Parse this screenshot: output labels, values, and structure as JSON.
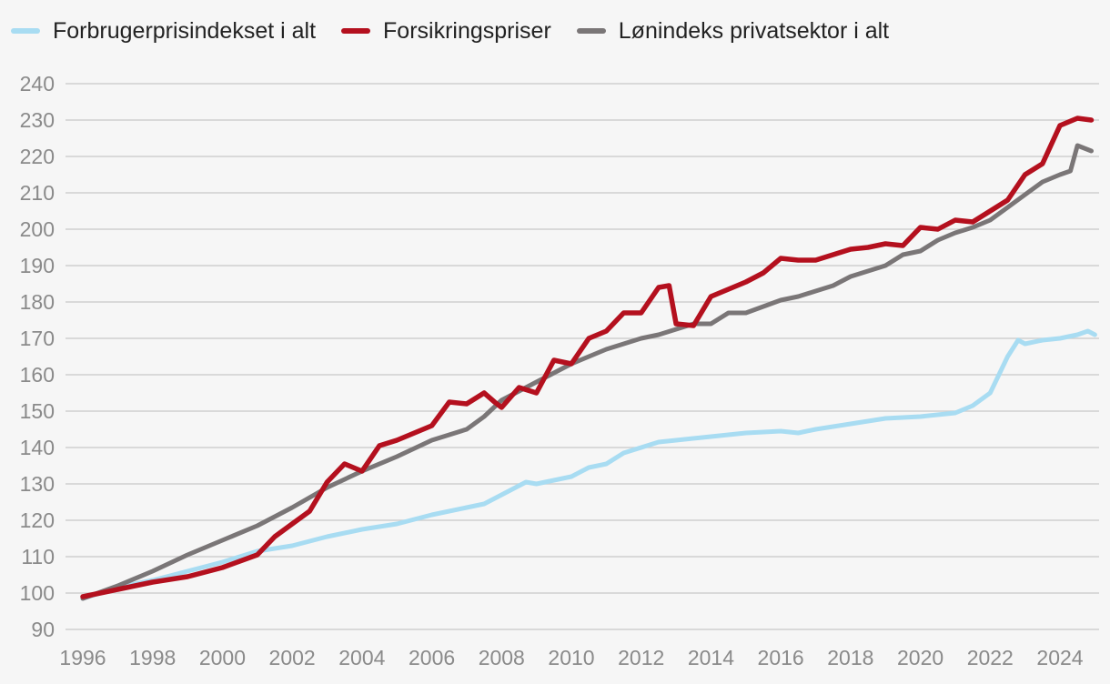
{
  "chart_data": {
    "type": "line",
    "title": "",
    "xlabel": "",
    "ylabel": "",
    "xlim": [
      1996,
      2025
    ],
    "ylim": [
      90,
      240
    ],
    "y_ticks": [
      90,
      100,
      110,
      120,
      130,
      140,
      150,
      160,
      170,
      180,
      190,
      200,
      210,
      220,
      230,
      240
    ],
    "x_ticks": [
      1996,
      1998,
      2000,
      2002,
      2004,
      2006,
      2008,
      2010,
      2012,
      2014,
      2016,
      2018,
      2020,
      2022,
      2024
    ],
    "grid": "horizontal",
    "legend_position": "top-left",
    "series": [
      {
        "name": "Forbrugerprisindekset i alt",
        "color": "#a8dcf2",
        "x": [
          1996.0,
          1997.0,
          1998.0,
          1999.0,
          2000.0,
          2001.0,
          2002.0,
          2003.0,
          2004.0,
          2005.0,
          2006.0,
          2007.0,
          2007.5,
          2008.0,
          2008.7,
          2009.0,
          2010.0,
          2010.5,
          2011.0,
          2011.5,
          2012.0,
          2012.5,
          2013.0,
          2014.0,
          2015.0,
          2016.0,
          2016.5,
          2017.0,
          2018.0,
          2019.0,
          2020.0,
          2021.0,
          2021.5,
          2022.0,
          2022.5,
          2022.8,
          2023.0,
          2023.5,
          2024.0,
          2024.5,
          2024.8,
          2025.0
        ],
        "values": [
          98.5,
          101.5,
          103.5,
          106.0,
          108.5,
          111.5,
          113.0,
          115.5,
          117.5,
          119.0,
          121.5,
          123.5,
          124.5,
          127.0,
          130.5,
          130.0,
          132.0,
          134.5,
          135.5,
          138.5,
          140.0,
          141.5,
          142.0,
          143.0,
          144.0,
          144.5,
          144.0,
          145.0,
          146.5,
          148.0,
          148.5,
          149.5,
          151.5,
          155.0,
          165.0,
          169.5,
          168.5,
          169.5,
          170.0,
          171.0,
          172.0,
          171.0
        ]
      },
      {
        "name": "Forsikringspriser",
        "color": "#b4101e",
        "x": [
          1996.0,
          1997.0,
          1998.0,
          1999.0,
          2000.0,
          2001.0,
          2001.5,
          2002.0,
          2002.5,
          2003.0,
          2003.5,
          2004.0,
          2004.5,
          2005.0,
          2006.0,
          2006.5,
          2007.0,
          2007.5,
          2007.8,
          2008.0,
          2008.5,
          2009.0,
          2009.5,
          2010.0,
          2010.5,
          2011.0,
          2011.5,
          2012.0,
          2012.5,
          2012.8,
          2013.0,
          2013.5,
          2014.0,
          2014.5,
          2015.0,
          2015.5,
          2016.0,
          2016.5,
          2017.0,
          2018.0,
          2018.5,
          2019.0,
          2019.5,
          2020.0,
          2020.5,
          2021.0,
          2021.5,
          2022.0,
          2022.5,
          2023.0,
          2023.5,
          2024.0,
          2024.5,
          2024.9
        ],
        "values": [
          99.0,
          101.0,
          103.0,
          104.5,
          107.0,
          110.5,
          115.5,
          119.0,
          122.5,
          130.5,
          135.5,
          133.5,
          140.5,
          142.0,
          146.0,
          152.5,
          152.0,
          155.0,
          152.5,
          151.0,
          156.5,
          155.0,
          164.0,
          163.0,
          170.0,
          172.0,
          177.0,
          177.0,
          184.0,
          184.5,
          174.0,
          173.5,
          181.5,
          183.5,
          185.5,
          188.0,
          192.0,
          191.5,
          191.5,
          194.5,
          195.0,
          196.0,
          195.5,
          200.5,
          200.0,
          202.5,
          202.0,
          205.0,
          208.0,
          215.0,
          218.0,
          228.5,
          230.5,
          230.0
        ]
      },
      {
        "name": "Lønindeks privatsektor i alt",
        "color": "#7a7677",
        "x": [
          1996.0,
          1997.0,
          1998.0,
          1999.0,
          2000.0,
          2001.0,
          2002.0,
          2003.0,
          2004.0,
          2005.0,
          2006.0,
          2007.0,
          2007.5,
          2008.0,
          2009.0,
          2010.0,
          2011.0,
          2012.0,
          2012.5,
          2013.0,
          2013.5,
          2014.0,
          2014.5,
          2015.0,
          2016.0,
          2016.5,
          2017.0,
          2017.5,
          2018.0,
          2019.0,
          2019.5,
          2020.0,
          2020.5,
          2021.0,
          2021.5,
          2022.0,
          2022.5,
          2023.0,
          2023.5,
          2024.0,
          2024.3,
          2024.5,
          2024.9
        ],
        "values": [
          98.5,
          102.0,
          106.0,
          110.5,
          114.5,
          118.5,
          123.5,
          129.0,
          133.5,
          137.5,
          142.0,
          145.0,
          148.5,
          153.0,
          158.0,
          163.0,
          167.0,
          170.0,
          171.0,
          172.5,
          174.0,
          174.0,
          177.0,
          177.0,
          180.5,
          181.5,
          183.0,
          184.5,
          187.0,
          190.0,
          193.0,
          194.0,
          197.0,
          199.0,
          200.5,
          202.5,
          206.0,
          209.5,
          213.0,
          215.0,
          216.0,
          223.0,
          221.5
        ]
      }
    ]
  }
}
